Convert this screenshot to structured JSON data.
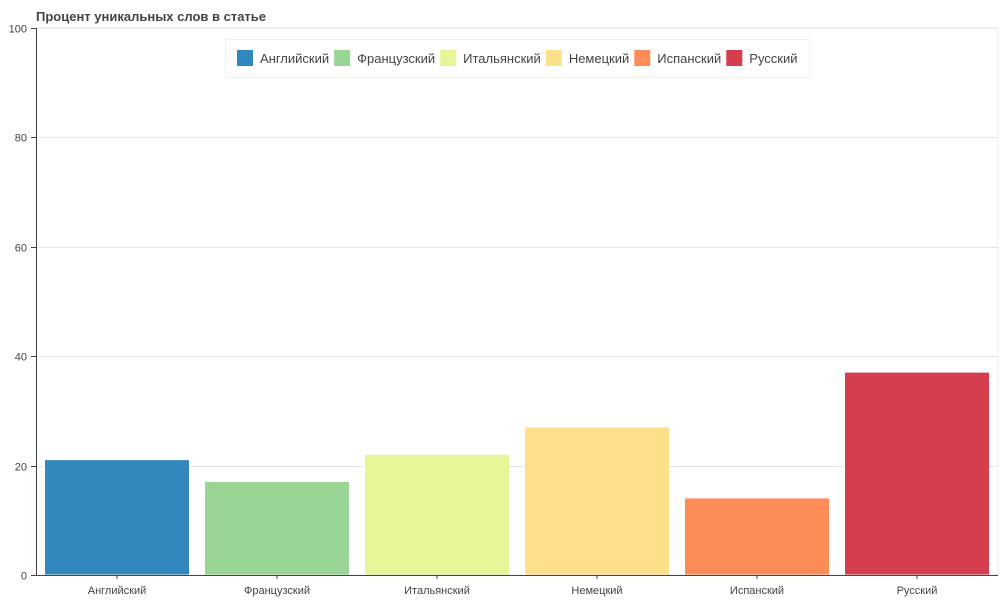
{
  "chart_data": {
    "type": "bar",
    "title": "Процент уникальных слов в статье",
    "categories": [
      "Английский",
      "Французский",
      "Итальянский",
      "Немецкий",
      "Испанский",
      "Русский"
    ],
    "values": [
      21,
      17,
      22,
      27,
      14,
      37
    ],
    "colors": [
      "#3288bd",
      "#99d594",
      "#e6f598",
      "#fee08b",
      "#fc8d59",
      "#d53e4f"
    ],
    "ylim": [
      0,
      100
    ],
    "yticks": [
      0,
      20,
      40,
      60,
      80,
      100
    ],
    "ytick_labels": [
      "0",
      "20",
      "40",
      "60",
      "80",
      "100"
    ],
    "grid": true,
    "legend": {
      "placement": "top-center",
      "entries": [
        "Английский",
        "Французский",
        "Итальянский",
        "Немецкий",
        "Испанский",
        "Русский"
      ]
    }
  }
}
